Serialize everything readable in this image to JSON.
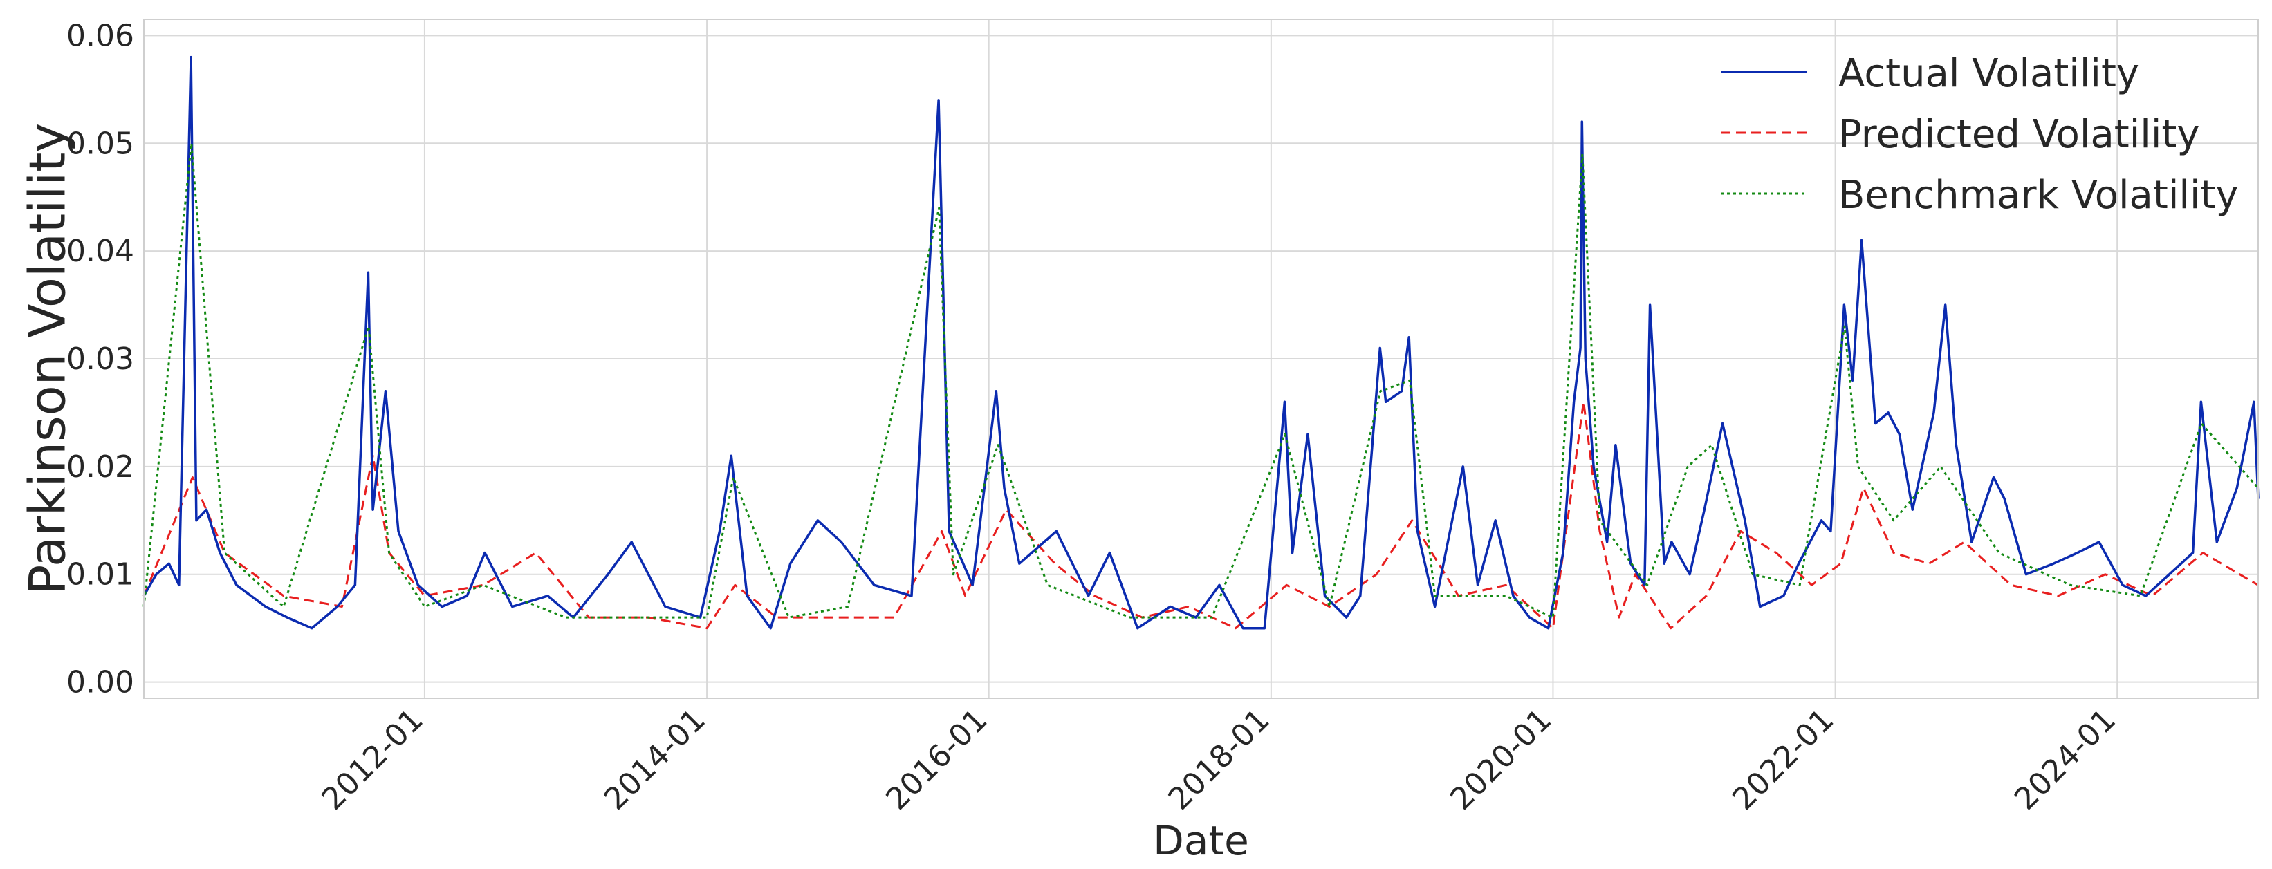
{
  "chart_data": {
    "type": "line",
    "title": "",
    "xlabel": "Date",
    "ylabel": "Parkinson Volatility",
    "x_range": [
      "2010-01-04",
      "2024-12-31"
    ],
    "ylim": [
      -0.0015,
      0.0615
    ],
    "y_ticks": [
      0.0,
      0.01,
      0.02,
      0.03,
      0.04,
      0.05,
      0.06
    ],
    "y_tick_labels": [
      "0.00",
      "0.01",
      "0.02",
      "0.03",
      "0.04",
      "0.05",
      "0.06"
    ],
    "x_ticks": [
      "2012-01-01",
      "2014-01-01",
      "2016-01-01",
      "2018-01-01",
      "2020-01-01",
      "2022-01-01",
      "2024-01-01"
    ],
    "x_tick_labels": [
      "2012-01",
      "2014-01",
      "2016-01",
      "2018-01",
      "2020-01",
      "2022-01",
      "2024-01"
    ],
    "grid": true,
    "legend_position": "top-right",
    "series": [
      {
        "name": "Actual Volatility",
        "color": "#0b2bb0",
        "style": "solid",
        "x": [
          "2010-01-04",
          "2010-02-05",
          "2010-03-10",
          "2010-04-05",
          "2010-05-06",
          "2010-05-20",
          "2010-06-15",
          "2010-07-20",
          "2010-09-01",
          "2010-11-15",
          "2011-01-10",
          "2011-03-15",
          "2011-05-20",
          "2011-07-05",
          "2011-08-08",
          "2011-08-20",
          "2011-09-22",
          "2011-10-25",
          "2011-12-15",
          "2012-02-15",
          "2012-04-20",
          "2012-06-05",
          "2012-08-15",
          "2012-11-15",
          "2013-01-20",
          "2013-04-20",
          "2013-06-20",
          "2013-09-15",
          "2013-12-15",
          "2014-02-03",
          "2014-03-05",
          "2014-04-15",
          "2014-06-15",
          "2014-08-05",
          "2014-10-15",
          "2014-12-15",
          "2015-03-10",
          "2015-06-15",
          "2015-08-24",
          "2015-09-20",
          "2015-11-20",
          "2016-01-20",
          "2016-02-10",
          "2016-03-20",
          "2016-06-24",
          "2016-09-15",
          "2016-11-09",
          "2017-01-20",
          "2017-04-15",
          "2017-06-20",
          "2017-08-20",
          "2017-10-20",
          "2017-12-15",
          "2018-02-05",
          "2018-02-25",
          "2018-04-06",
          "2018-05-20",
          "2018-07-15",
          "2018-08-20",
          "2018-10-10",
          "2018-10-25",
          "2018-12-05",
          "2018-12-24",
          "2019-01-15",
          "2019-03-01",
          "2019-05-13",
          "2019-06-20",
          "2019-08-05",
          "2019-09-20",
          "2019-11-01",
          "2019-12-20",
          "2020-01-27",
          "2020-02-24",
          "2020-03-12",
          "2020-03-16",
          "2020-03-25",
          "2020-04-15",
          "2020-05-20",
          "2020-06-11",
          "2020-07-20",
          "2020-08-25",
          "2020-09-08",
          "2020-10-15",
          "2020-11-03",
          "2020-12-20",
          "2021-01-27",
          "2021-03-15",
          "2021-05-12",
          "2021-06-20",
          "2021-08-20",
          "2021-09-28",
          "2021-11-26",
          "2021-12-20",
          "2022-01-24",
          "2022-02-15",
          "2022-03-10",
          "2022-04-15",
          "2022-05-18",
          "2022-06-16",
          "2022-07-20",
          "2022-09-13",
          "2022-10-13",
          "2022-11-10",
          "2022-12-20",
          "2023-02-15",
          "2023-03-15",
          "2023-05-10",
          "2023-07-20",
          "2023-09-20",
          "2023-11-15",
          "2024-01-15",
          "2024-03-15",
          "2024-05-15",
          "2024-07-15",
          "2024-08-05",
          "2024-09-15",
          "2024-11-06",
          "2024-12-20",
          "2024-12-31"
        ],
        "y": [
          0.008,
          0.01,
          0.011,
          0.009,
          0.058,
          0.015,
          0.016,
          0.012,
          0.009,
          0.007,
          0.006,
          0.005,
          0.007,
          0.009,
          0.038,
          0.016,
          0.027,
          0.014,
          0.009,
          0.007,
          0.008,
          0.012,
          0.007,
          0.008,
          0.006,
          0.01,
          0.013,
          0.007,
          0.006,
          0.014,
          0.021,
          0.008,
          0.005,
          0.011,
          0.015,
          0.013,
          0.009,
          0.008,
          0.054,
          0.014,
          0.009,
          0.027,
          0.018,
          0.011,
          0.014,
          0.008,
          0.012,
          0.005,
          0.007,
          0.006,
          0.009,
          0.005,
          0.005,
          0.026,
          0.012,
          0.023,
          0.008,
          0.006,
          0.008,
          0.031,
          0.026,
          0.027,
          0.032,
          0.014,
          0.007,
          0.02,
          0.009,
          0.015,
          0.008,
          0.006,
          0.005,
          0.012,
          0.026,
          0.031,
          0.052,
          0.03,
          0.02,
          0.013,
          0.022,
          0.011,
          0.009,
          0.035,
          0.011,
          0.013,
          0.01,
          0.016,
          0.024,
          0.015,
          0.007,
          0.008,
          0.011,
          0.015,
          0.014,
          0.035,
          0.028,
          0.041,
          0.024,
          0.025,
          0.023,
          0.016,
          0.025,
          0.035,
          0.022,
          0.013,
          0.019,
          0.017,
          0.01,
          0.011,
          0.012,
          0.013,
          0.009,
          0.008,
          0.01,
          0.012,
          0.026,
          0.013,
          0.018,
          0.026,
          0.017
        ]
      },
      {
        "name": "Predicted Volatility",
        "color": "#e81f1f",
        "style": "dashed",
        "x": [
          "2010-01-04",
          "2010-05-10",
          "2010-08-01",
          "2011-01-01",
          "2011-06-01",
          "2011-08-20",
          "2011-10-01",
          "2012-01-01",
          "2012-06-01",
          "2012-10-15",
          "2013-03-01",
          "2013-08-01",
          "2014-01-01",
          "2014-03-15",
          "2014-07-01",
          "2014-12-01",
          "2015-05-01",
          "2015-09-01",
          "2015-11-01",
          "2016-02-15",
          "2016-06-20",
          "2016-10-01",
          "2017-02-01",
          "2017-06-01",
          "2017-10-01",
          "2018-02-10",
          "2018-06-01",
          "2018-10-01",
          "2019-01-01",
          "2019-05-01",
          "2019-09-01",
          "2020-01-01",
          "2020-03-20",
          "2020-05-01",
          "2020-06-20",
          "2020-08-01",
          "2020-11-01",
          "2021-02-01",
          "2021-05-01",
          "2021-08-01",
          "2021-11-01",
          "2022-01-15",
          "2022-03-15",
          "2022-06-01",
          "2022-09-01",
          "2022-12-01",
          "2023-04-01",
          "2023-08-01",
          "2023-12-01",
          "2024-04-01",
          "2024-08-10",
          "2024-12-31"
        ],
        "y": [
          0.008,
          0.019,
          0.012,
          0.008,
          0.007,
          0.021,
          0.012,
          0.008,
          0.009,
          0.012,
          0.006,
          0.006,
          0.005,
          0.009,
          0.006,
          0.006,
          0.006,
          0.014,
          0.008,
          0.016,
          0.011,
          0.008,
          0.006,
          0.007,
          0.005,
          0.009,
          0.007,
          0.01,
          0.015,
          0.008,
          0.009,
          0.005,
          0.026,
          0.014,
          0.006,
          0.01,
          0.005,
          0.008,
          0.014,
          0.012,
          0.009,
          0.011,
          0.018,
          0.012,
          0.011,
          0.013,
          0.009,
          0.008,
          0.01,
          0.008,
          0.012,
          0.009
        ]
      },
      {
        "name": "Benchmark Volatility",
        "color": "#148a14",
        "style": "dotted",
        "x": [
          "2010-01-04",
          "2010-05-07",
          "2010-08-01",
          "2011-01-01",
          "2011-08-09",
          "2011-10-01",
          "2012-01-01",
          "2012-06-01",
          "2013-01-01",
          "2014-01-01",
          "2014-03-10",
          "2014-08-01",
          "2015-01-01",
          "2015-08-25",
          "2015-10-01",
          "2016-01-25",
          "2016-06-01",
          "2017-01-01",
          "2017-08-01",
          "2018-02-06",
          "2018-06-01",
          "2018-10-11",
          "2018-12-26",
          "2019-03-01",
          "2019-09-01",
          "2020-01-01",
          "2020-03-17",
          "2020-05-01",
          "2020-09-01",
          "2020-12-15",
          "2021-02-15",
          "2021-06-01",
          "2021-10-01",
          "2022-01-25",
          "2022-03-01",
          "2022-06-01",
          "2022-10-01",
          "2023-03-01",
          "2023-09-01",
          "2024-03-01",
          "2024-08-06",
          "2024-12-31"
        ],
        "y": [
          0.007,
          0.05,
          0.012,
          0.007,
          0.033,
          0.012,
          0.007,
          0.009,
          0.006,
          0.006,
          0.019,
          0.006,
          0.007,
          0.044,
          0.01,
          0.022,
          0.009,
          0.006,
          0.006,
          0.023,
          0.007,
          0.027,
          0.028,
          0.008,
          0.008,
          0.006,
          0.049,
          0.015,
          0.009,
          0.02,
          0.022,
          0.01,
          0.009,
          0.033,
          0.02,
          0.015,
          0.02,
          0.012,
          0.009,
          0.008,
          0.024,
          0.018
        ]
      }
    ]
  }
}
